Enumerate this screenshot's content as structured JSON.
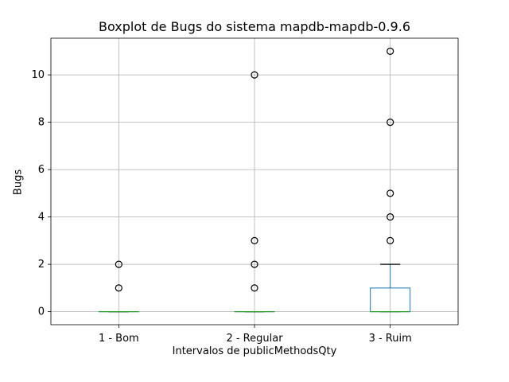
{
  "chart_data": {
    "type": "boxplot",
    "title": "Boxplot de Bugs do sistema mapdb-mapdb-0.9.6",
    "xlabel": "Intervalos de publicMethodsQty",
    "ylabel": "Bugs",
    "ylim": [
      -0.55,
      11.55
    ],
    "yticks": [
      "0",
      "2",
      "4",
      "6",
      "8",
      "10"
    ],
    "yticks_values": [
      0,
      2,
      4,
      6,
      8,
      10
    ],
    "grid": true,
    "categories": [
      "1 - Bom",
      "2 - Regular",
      "3 - Ruim"
    ],
    "boxes": [
      {
        "category": "1 - Bom",
        "whisker_low": 0,
        "q1": 0,
        "median": 0,
        "q3": 0,
        "whisker_high": 0,
        "outliers": [
          1,
          2
        ]
      },
      {
        "category": "2 - Regular",
        "whisker_low": 0,
        "q1": 0,
        "median": 0,
        "q3": 0,
        "whisker_high": 0,
        "outliers": [
          1,
          2,
          3,
          10
        ]
      },
      {
        "category": "3 - Ruim",
        "whisker_low": 0,
        "q1": 0,
        "median": 0,
        "q3": 1,
        "whisker_high": 2,
        "outliers": [
          3,
          4,
          5,
          8,
          11
        ]
      }
    ],
    "colors": {
      "box": "#1f77b4",
      "median": "#2ca02c",
      "whisker": "#000000",
      "grid": "#b0b0b0",
      "outlier": "#000000"
    }
  }
}
